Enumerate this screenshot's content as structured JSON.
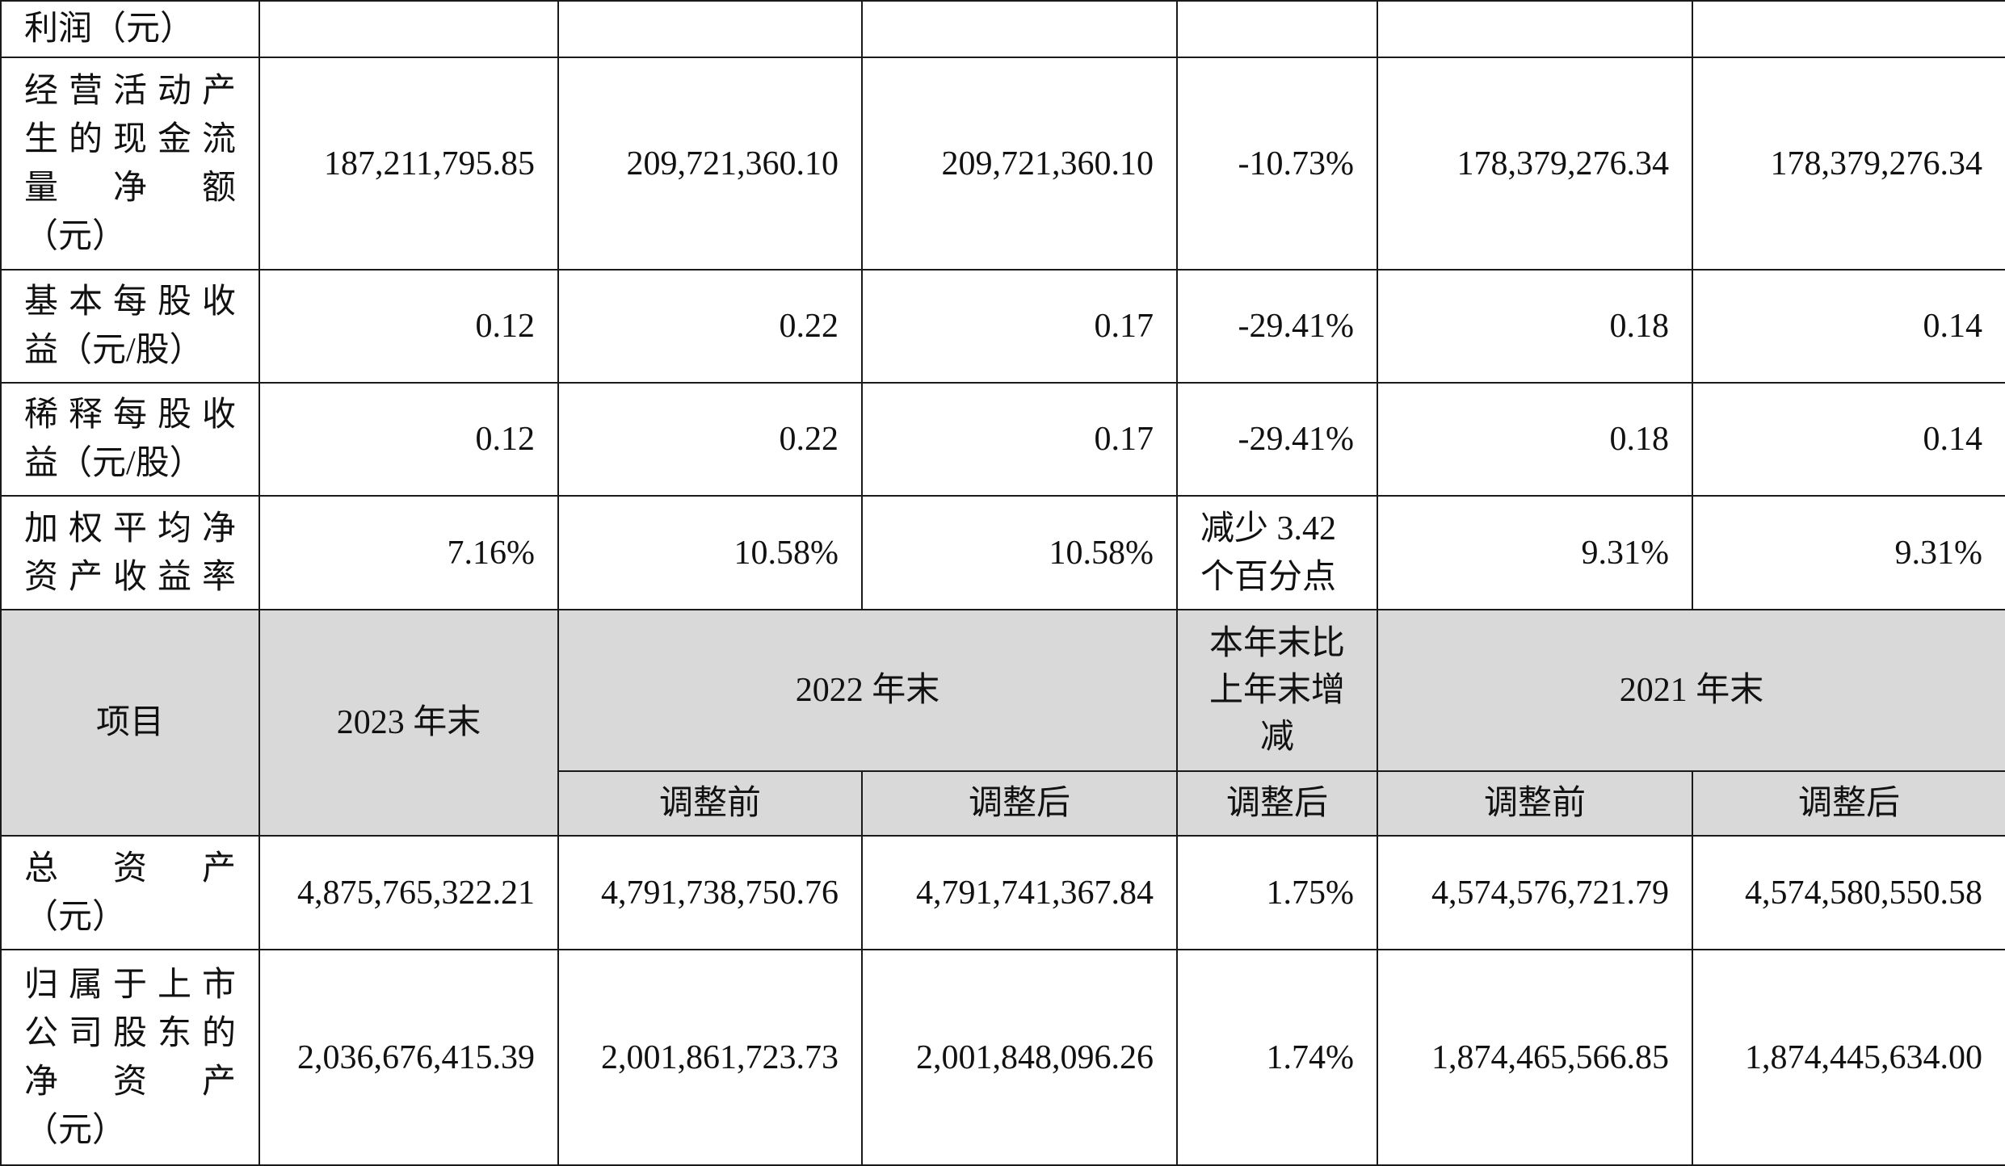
{
  "top_rows": [
    {
      "label_lines": [
        "利润（元）"
      ],
      "values": [
        "",
        "",
        "",
        "",
        "",
        ""
      ]
    },
    {
      "label_lines": [
        "经营活动产",
        "生的现金流",
        "量　净　额",
        "（元）"
      ],
      "values": [
        "187,211,795.85",
        "209,721,360.10",
        "209,721,360.10",
        "-10.73%",
        "178,379,276.34",
        "178,379,276.34"
      ]
    },
    {
      "label_lines": [
        "基本每股收",
        "益（元/股）"
      ],
      "values": [
        "0.12",
        "0.22",
        "0.17",
        "-29.41%",
        "0.18",
        "0.14"
      ]
    },
    {
      "label_lines": [
        "稀释每股收",
        "益（元/股）"
      ],
      "values": [
        "0.12",
        "0.22",
        "0.17",
        "-29.41%",
        "0.18",
        "0.14"
      ]
    },
    {
      "label_lines": [
        "加权平均净",
        "资产收益率"
      ],
      "values": [
        "7.16%",
        "10.58%",
        "10.58%",
        "减少 3.42 个百分点",
        "9.31%",
        "9.31%"
      ]
    }
  ],
  "header": {
    "item": "项目",
    "year_2023": "2023 年末",
    "year_2022": "2022 年末",
    "change": "本年末比上年末增减",
    "year_2021": "2021 年末",
    "sub": [
      "调整前",
      "调整后",
      "调整后",
      "调整前",
      "调整后"
    ]
  },
  "bottom_rows": [
    {
      "label_lines": [
        "总　资　产",
        "（元）"
      ],
      "values": [
        "4,875,765,322.21",
        "4,791,738,750.76",
        "4,791,741,367.84",
        "1.75%",
        "4,574,576,721.79",
        "4,574,580,550.58"
      ]
    },
    {
      "label_lines": [
        "归属于上市",
        "公司股东的",
        "净　资　产",
        "（元）"
      ],
      "values": [
        "2,036,676,415.39",
        "2,001,861,723.73",
        "2,001,848,096.26",
        "1.74%",
        "1,874,465,566.85",
        "1,874,445,634.00"
      ]
    }
  ]
}
